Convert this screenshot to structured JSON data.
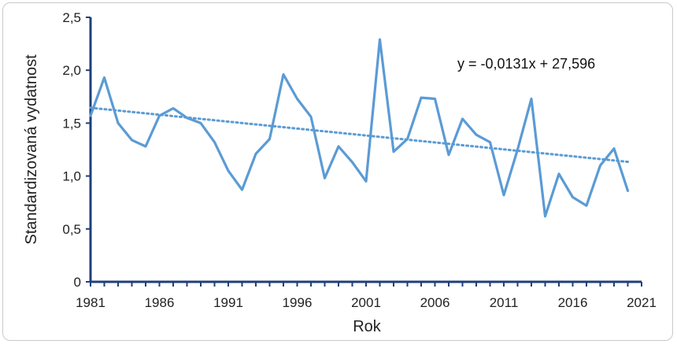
{
  "chart_data": {
    "type": "line",
    "xlabel": "Rok",
    "ylabel": "Standardizovaná vydatnost",
    "xlim": [
      1981,
      2021
    ],
    "ylim": [
      0,
      2.5
    ],
    "x_ticks": [
      1981,
      1986,
      1991,
      1996,
      2001,
      2006,
      2011,
      2016,
      2021
    ],
    "y_ticks": [
      "0",
      "0,5",
      "1,0",
      "1,5",
      "2,0",
      "2,5"
    ],
    "y_tick_values": [
      0,
      0.5,
      1.0,
      1.5,
      2.0,
      2.5
    ],
    "grid": false,
    "series": [
      {
        "x": [
          1981,
          1982,
          1983,
          1984,
          1985,
          1986,
          1987,
          1988,
          1989,
          1990,
          1991,
          1992,
          1993,
          1994,
          1995,
          1996,
          1997,
          1998,
          1999,
          2000,
          2001,
          2002,
          2003,
          2004,
          2005,
          2006,
          2007,
          2008,
          2009,
          2010,
          2011,
          2012,
          2013,
          2014,
          2015,
          2016,
          2017,
          2018,
          2019,
          2020
        ],
        "values": [
          1.57,
          1.93,
          1.5,
          1.34,
          1.28,
          1.57,
          1.64,
          1.55,
          1.5,
          1.32,
          1.05,
          0.87,
          1.21,
          1.35,
          1.96,
          1.73,
          1.56,
          0.98,
          1.28,
          1.13,
          0.95,
          2.29,
          1.23,
          1.35,
          1.74,
          1.73,
          1.2,
          1.54,
          1.39,
          1.32,
          0.82,
          1.25,
          1.73,
          0.62,
          1.02,
          0.8,
          0.72,
          1.1,
          1.26,
          0.86
        ],
        "color": "#5b9bd5"
      }
    ],
    "trendline": {
      "equation": "y = -0,0131x + 27,596",
      "slope": -0.0131,
      "intercept": 27.596,
      "style": "dotted",
      "color": "#5b9bd5"
    },
    "axis_color": "#1f3f7a"
  }
}
